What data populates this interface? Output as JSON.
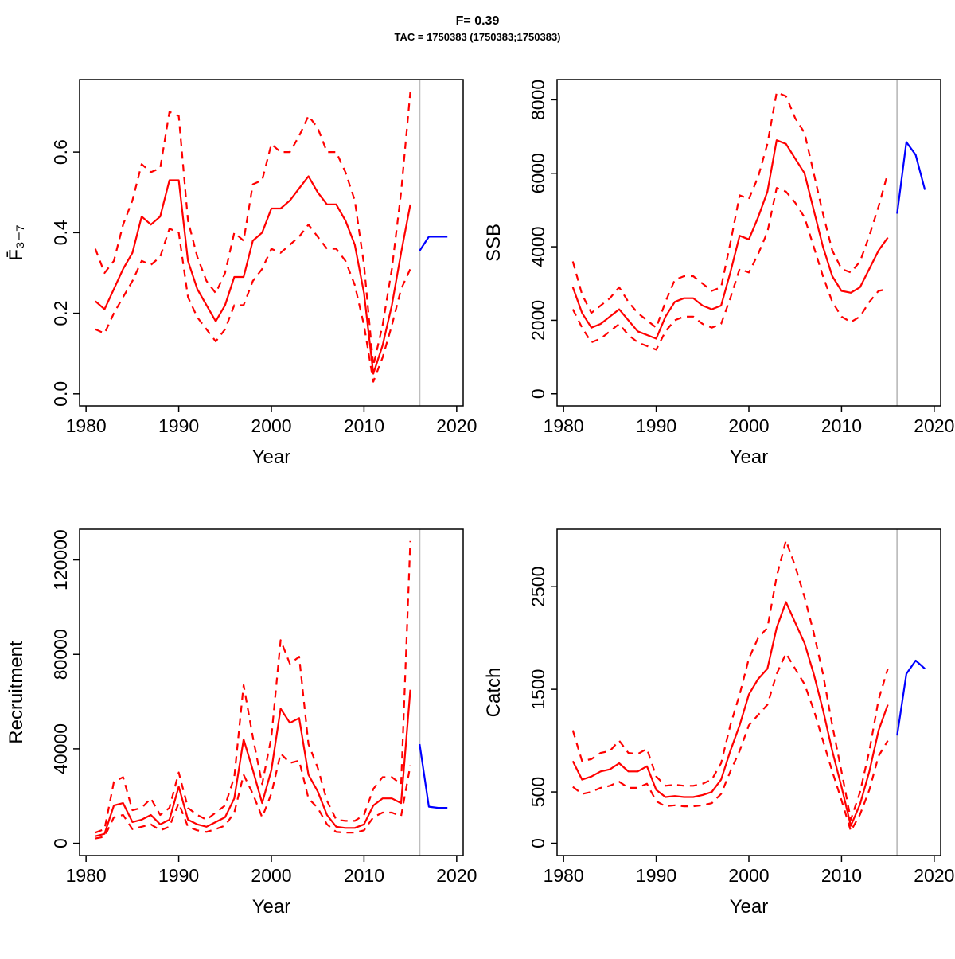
{
  "title": {
    "line1": "F= 0.39",
    "line2": "TAC = 1750383 (1750383;1750383)"
  },
  "colors": {
    "red": "#FF0000",
    "blue": "#0000FF",
    "divider": "#BEBEBE",
    "axis": "#000000"
  },
  "chart_data": [
    {
      "id": "fbar",
      "type": "line",
      "ylabel": "F̄₃₋₇",
      "xlabel": "Year",
      "xlim": [
        1979.3,
        2020.7
      ],
      "ylim": [
        -0.03,
        0.78
      ],
      "xticks": [
        1980,
        1990,
        2000,
        2010,
        2020
      ],
      "xtick_labels": [
        "1980",
        "1990",
        "2000",
        "2010",
        "2020"
      ],
      "yticks": [
        0.0,
        0.2,
        0.4,
        0.6
      ],
      "ytick_labels": [
        "0.0",
        "0.2",
        "0.4",
        "0.6"
      ],
      "divider_x": 2016,
      "years_hist": [
        1981,
        1982,
        1983,
        1984,
        1985,
        1986,
        1987,
        1988,
        1989,
        1990,
        1991,
        1992,
        1993,
        1994,
        1995,
        1996,
        1997,
        1998,
        1999,
        2000,
        2001,
        2002,
        2003,
        2004,
        2005,
        2006,
        2007,
        2008,
        2009,
        2010,
        2011,
        2012,
        2013,
        2014,
        2015
      ],
      "years_proj": [
        2016,
        2017,
        2018,
        2019
      ],
      "series": [
        {
          "name": "median",
          "role": "hist",
          "color": "red",
          "dash": false,
          "values": [
            0.23,
            0.21,
            0.26,
            0.31,
            0.35,
            0.44,
            0.42,
            0.44,
            0.53,
            0.53,
            0.33,
            0.26,
            0.22,
            0.18,
            0.22,
            0.29,
            0.29,
            0.38,
            0.4,
            0.46,
            0.46,
            0.48,
            0.51,
            0.54,
            0.5,
            0.47,
            0.47,
            0.43,
            0.37,
            0.25,
            0.05,
            0.12,
            0.22,
            0.35,
            0.47
          ]
        },
        {
          "name": "upper",
          "role": "hist",
          "color": "red",
          "dash": true,
          "values": [
            0.36,
            0.3,
            0.33,
            0.42,
            0.48,
            0.57,
            0.55,
            0.56,
            0.7,
            0.69,
            0.43,
            0.34,
            0.28,
            0.25,
            0.3,
            0.4,
            0.38,
            0.52,
            0.53,
            0.62,
            0.6,
            0.6,
            0.64,
            0.69,
            0.66,
            0.6,
            0.6,
            0.55,
            0.48,
            0.32,
            0.07,
            0.17,
            0.31,
            0.5,
            0.75
          ]
        },
        {
          "name": "lower",
          "role": "hist",
          "color": "red",
          "dash": true,
          "values": [
            0.16,
            0.15,
            0.2,
            0.24,
            0.28,
            0.33,
            0.32,
            0.34,
            0.41,
            0.4,
            0.24,
            0.19,
            0.16,
            0.13,
            0.16,
            0.22,
            0.22,
            0.28,
            0.31,
            0.36,
            0.35,
            0.37,
            0.39,
            0.42,
            0.39,
            0.36,
            0.36,
            0.33,
            0.27,
            0.17,
            0.03,
            0.09,
            0.17,
            0.26,
            0.31
          ]
        },
        {
          "name": "projection",
          "role": "proj",
          "color": "blue",
          "dash": false,
          "values": [
            0.355,
            0.39,
            0.39,
            0.39
          ]
        }
      ]
    },
    {
      "id": "ssb",
      "type": "line",
      "ylabel": "SSB",
      "xlabel": "Year",
      "xlim": [
        1979.3,
        2020.7
      ],
      "ylim": [
        -330,
        8550
      ],
      "xticks": [
        1980,
        1990,
        2000,
        2010,
        2020
      ],
      "xtick_labels": [
        "1980",
        "1990",
        "2000",
        "2010",
        "2020"
      ],
      "yticks": [
        0,
        2000,
        4000,
        6000,
        8000
      ],
      "ytick_labels": [
        "0",
        "2000",
        "4000",
        "6000",
        "8000"
      ],
      "divider_x": 2016,
      "years_hist": [
        1981,
        1982,
        1983,
        1984,
        1985,
        1986,
        1987,
        1988,
        1989,
        1990,
        1991,
        1992,
        1993,
        1994,
        1995,
        1996,
        1997,
        1998,
        1999,
        2000,
        2001,
        2002,
        2003,
        2004,
        2005,
        2006,
        2007,
        2008,
        2009,
        2010,
        2011,
        2012,
        2013,
        2014,
        2015
      ],
      "years_proj": [
        2016,
        2017,
        2018,
        2019
      ],
      "series": [
        {
          "name": "median",
          "role": "hist",
          "color": "red",
          "dash": false,
          "values": [
            2900,
            2200,
            1800,
            1900,
            2100,
            2300,
            2000,
            1700,
            1600,
            1500,
            2100,
            2500,
            2600,
            2600,
            2400,
            2300,
            2400,
            3300,
            4300,
            4200,
            4800,
            5500,
            6900,
            6800,
            6400,
            6000,
            5000,
            4000,
            3200,
            2800,
            2750,
            2900,
            3400,
            3900,
            4250
          ]
        },
        {
          "name": "upper",
          "role": "hist",
          "color": "red",
          "dash": true,
          "values": [
            3600,
            2700,
            2200,
            2400,
            2600,
            2900,
            2500,
            2200,
            2000,
            1800,
            2500,
            3100,
            3200,
            3200,
            3000,
            2800,
            2900,
            4100,
            5400,
            5300,
            5900,
            6800,
            8200,
            8100,
            7500,
            7100,
            6000,
            4900,
            3900,
            3400,
            3300,
            3600,
            4300,
            5100,
            6000
          ]
        },
        {
          "name": "lower",
          "role": "hist",
          "color": "red",
          "dash": true,
          "values": [
            2300,
            1800,
            1400,
            1500,
            1700,
            1900,
            1600,
            1400,
            1300,
            1200,
            1700,
            2000,
            2100,
            2100,
            1900,
            1800,
            1900,
            2600,
            3400,
            3300,
            3800,
            4400,
            5600,
            5500,
            5200,
            4800,
            4000,
            3200,
            2500,
            2100,
            1950,
            2100,
            2500,
            2800,
            2850
          ]
        },
        {
          "name": "projection",
          "role": "proj",
          "color": "blue",
          "dash": false,
          "values": [
            4900,
            6850,
            6500,
            5550
          ]
        }
      ]
    },
    {
      "id": "recruitment",
      "type": "line",
      "ylabel": "Recruitment",
      "xlabel": "Year",
      "xlim": [
        1979.3,
        2020.7
      ],
      "ylim": [
        -5200,
        133000
      ],
      "xticks": [
        1980,
        1990,
        2000,
        2010,
        2020
      ],
      "xtick_labels": [
        "1980",
        "1990",
        "2000",
        "2010",
        "2020"
      ],
      "yticks": [
        0,
        40000,
        80000,
        120000
      ],
      "ytick_labels": [
        "0",
        "40000",
        "80000",
        "120000"
      ],
      "divider_x": 2016,
      "years_hist": [
        1981,
        1982,
        1983,
        1984,
        1985,
        1986,
        1987,
        1988,
        1989,
        1990,
        1991,
        1992,
        1993,
        1994,
        1995,
        1996,
        1997,
        1998,
        1999,
        2000,
        2001,
        2002,
        2003,
        2004,
        2005,
        2006,
        2007,
        2008,
        2009,
        2010,
        2011,
        2012,
        2013,
        2014,
        2015
      ],
      "years_proj": [
        2016,
        2017,
        2018,
        2019
      ],
      "series": [
        {
          "name": "median",
          "role": "hist",
          "color": "red",
          "dash": false,
          "values": [
            3000,
            4000,
            16000,
            17000,
            9000,
            10000,
            12000,
            8000,
            10000,
            24000,
            10000,
            8000,
            7000,
            9000,
            11000,
            19000,
            44000,
            31000,
            17000,
            31000,
            57000,
            51000,
            53000,
            29000,
            22000,
            12000,
            7000,
            6500,
            6500,
            8000,
            16000,
            19000,
            19000,
            17000,
            65000
          ]
        },
        {
          "name": "upper",
          "role": "hist",
          "color": "red",
          "dash": true,
          "values": [
            4500,
            6000,
            26000,
            28000,
            14000,
            15000,
            19000,
            12000,
            15000,
            30000,
            15000,
            12000,
            10000,
            13000,
            16000,
            28000,
            67000,
            45000,
            25000,
            45000,
            86000,
            76000,
            79000,
            42000,
            32000,
            18000,
            10000,
            9500,
            9500,
            12000,
            23000,
            28000,
            28000,
            25000,
            128000
          ]
        },
        {
          "name": "lower",
          "role": "hist",
          "color": "red",
          "dash": true,
          "values": [
            2000,
            2800,
            11000,
            12000,
            6000,
            7000,
            8000,
            5500,
            7000,
            17000,
            7000,
            5500,
            4800,
            6000,
            7500,
            13000,
            29000,
            21000,
            11000,
            21000,
            38000,
            34000,
            35000,
            19000,
            15000,
            8000,
            4800,
            4500,
            4500,
            5500,
            11000,
            13000,
            13000,
            11500,
            33000
          ]
        },
        {
          "name": "projection",
          "role": "proj",
          "color": "blue",
          "dash": false,
          "values": [
            42000,
            15500,
            15000,
            15000
          ]
        }
      ]
    },
    {
      "id": "catch",
      "type": "line",
      "ylabel": "Catch",
      "xlabel": "Year",
      "xlim": [
        1979.3,
        2020.7
      ],
      "ylim": [
        -120,
        3060
      ],
      "xticks": [
        1980,
        1990,
        2000,
        2010,
        2020
      ],
      "xtick_labels": [
        "1980",
        "1990",
        "2000",
        "2010",
        "2020"
      ],
      "yticks": [
        0,
        500,
        1500,
        2500
      ],
      "ytick_labels": [
        "0",
        "500",
        "1500",
        "2500"
      ],
      "divider_x": 2016,
      "years_hist": [
        1981,
        1982,
        1983,
        1984,
        1985,
        1986,
        1987,
        1988,
        1989,
        1990,
        1991,
        1992,
        1993,
        1994,
        1995,
        1996,
        1997,
        1998,
        1999,
        2000,
        2001,
        2002,
        2003,
        2004,
        2005,
        2006,
        2007,
        2008,
        2009,
        2010,
        2011,
        2012,
        2013,
        2014,
        2015
      ],
      "years_proj": [
        2016,
        2017,
        2018,
        2019
      ],
      "series": [
        {
          "name": "median",
          "role": "hist",
          "color": "red",
          "dash": false,
          "values": [
            800,
            620,
            650,
            700,
            720,
            780,
            700,
            700,
            750,
            520,
            450,
            460,
            450,
            450,
            470,
            500,
            620,
            900,
            1150,
            1450,
            1600,
            1700,
            2100,
            2350,
            2150,
            1950,
            1650,
            1300,
            900,
            550,
            170,
            380,
            700,
            1100,
            1350
          ]
        },
        {
          "name": "upper",
          "role": "hist",
          "color": "red",
          "dash": true,
          "values": [
            1100,
            800,
            820,
            880,
            900,
            1000,
            880,
            870,
            920,
            650,
            560,
            570,
            560,
            560,
            580,
            620,
            780,
            1150,
            1450,
            1800,
            2000,
            2100,
            2600,
            2950,
            2700,
            2400,
            2050,
            1650,
            1150,
            700,
            230,
            500,
            900,
            1400,
            1700
          ]
        },
        {
          "name": "lower",
          "role": "hist",
          "color": "red",
          "dash": true,
          "values": [
            550,
            480,
            500,
            540,
            560,
            600,
            540,
            540,
            580,
            410,
            360,
            370,
            360,
            360,
            370,
            390,
            480,
            700,
            900,
            1150,
            1250,
            1350,
            1650,
            1850,
            1700,
            1550,
            1300,
            1000,
            700,
            420,
            120,
            280,
            520,
            850,
            1000
          ]
        },
        {
          "name": "projection",
          "role": "proj",
          "color": "blue",
          "dash": false,
          "values": [
            1050,
            1650,
            1780,
            1700
          ]
        }
      ]
    }
  ]
}
